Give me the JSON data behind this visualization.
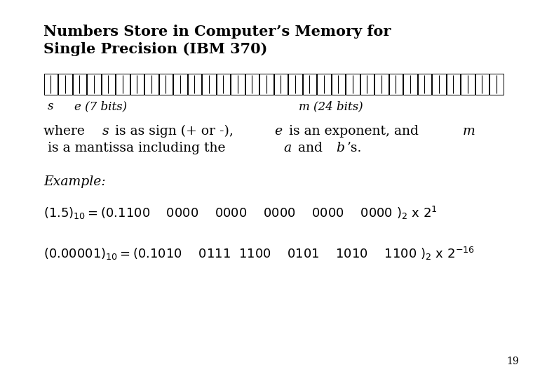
{
  "title_line1": "Numbers Store in Computer’s Memory for",
  "title_line2": "Single Precision (IBM 370)",
  "page_number": "19",
  "background_color": "#ffffff",
  "text_color": "#000000",
  "title_fontsize": 15,
  "body_fontsize": 13.5,
  "example_fontsize": 13.5,
  "equation_fontsize": 13,
  "page_fontsize": 10,
  "bit_fontsize": 18
}
